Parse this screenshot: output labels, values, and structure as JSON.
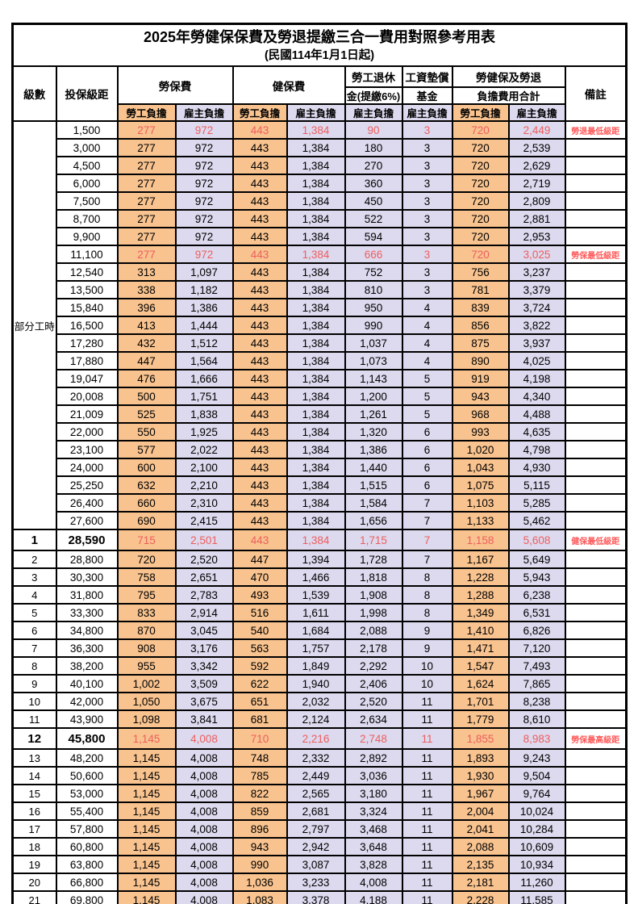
{
  "title": "2025年勞健保保費及勞退提繳三合一費用對照參考用表",
  "subtitle": "(民國114年1月1日起)",
  "columns": {
    "level": "級數",
    "bracket": "投保級距",
    "labor_insurance": "勞保費",
    "health_insurance": "健保費",
    "pension_line1": "勞工退休",
    "pension_line2": "金(提繳6%)",
    "wage_arrears_line1": "工資墊償",
    "wage_arrears_line2": "基金",
    "total_line1": "勞健保及勞退",
    "total_line2": "負擔費用合計",
    "remark": "備註",
    "employee_share": "勞工負擔",
    "employer_share": "雇主負擔"
  },
  "part_time_label": "部分工時",
  "part_time_rowspan": 23,
  "colors": {
    "employee_bg": "#F8C38F",
    "employer_bg": "#DDD9EE",
    "highlight_text": "#ED5E5E",
    "remark_text": "#FF5A5A",
    "border": "#000000"
  },
  "rows": [
    {
      "l": "",
      "b": "1,500",
      "v": [
        "277",
        "972",
        "443",
        "1,384",
        "90",
        "3",
        "720",
        "2,449"
      ],
      "r": "勞退最低級距",
      "red": true
    },
    {
      "l": "",
      "b": "3,000",
      "v": [
        "277",
        "972",
        "443",
        "1,384",
        "180",
        "3",
        "720",
        "2,539"
      ],
      "r": ""
    },
    {
      "l": "",
      "b": "4,500",
      "v": [
        "277",
        "972",
        "443",
        "1,384",
        "270",
        "3",
        "720",
        "2,629"
      ],
      "r": ""
    },
    {
      "l": "",
      "b": "6,000",
      "v": [
        "277",
        "972",
        "443",
        "1,384",
        "360",
        "3",
        "720",
        "2,719"
      ],
      "r": ""
    },
    {
      "l": "",
      "b": "7,500",
      "v": [
        "277",
        "972",
        "443",
        "1,384",
        "450",
        "3",
        "720",
        "2,809"
      ],
      "r": ""
    },
    {
      "l": "",
      "b": "8,700",
      "v": [
        "277",
        "972",
        "443",
        "1,384",
        "522",
        "3",
        "720",
        "2,881"
      ],
      "r": ""
    },
    {
      "l": "",
      "b": "9,900",
      "v": [
        "277",
        "972",
        "443",
        "1,384",
        "594",
        "3",
        "720",
        "2,953"
      ],
      "r": ""
    },
    {
      "l": "",
      "b": "11,100",
      "v": [
        "277",
        "972",
        "443",
        "1,384",
        "666",
        "3",
        "720",
        "3,025"
      ],
      "r": "勞保最低級距",
      "red": true
    },
    {
      "l": "",
      "b": "12,540",
      "v": [
        "313",
        "1,097",
        "443",
        "1,384",
        "752",
        "3",
        "756",
        "3,237"
      ],
      "r": ""
    },
    {
      "l": "",
      "b": "13,500",
      "v": [
        "338",
        "1,182",
        "443",
        "1,384",
        "810",
        "3",
        "781",
        "3,379"
      ],
      "r": ""
    },
    {
      "l": "",
      "b": "15,840",
      "v": [
        "396",
        "1,386",
        "443",
        "1,384",
        "950",
        "4",
        "839",
        "3,724"
      ],
      "r": ""
    },
    {
      "l": "",
      "b": "16,500",
      "v": [
        "413",
        "1,444",
        "443",
        "1,384",
        "990",
        "4",
        "856",
        "3,822"
      ],
      "r": ""
    },
    {
      "l": "",
      "b": "17,280",
      "v": [
        "432",
        "1,512",
        "443",
        "1,384",
        "1,037",
        "4",
        "875",
        "3,937"
      ],
      "r": ""
    },
    {
      "l": "",
      "b": "17,880",
      "v": [
        "447",
        "1,564",
        "443",
        "1,384",
        "1,073",
        "4",
        "890",
        "4,025"
      ],
      "r": ""
    },
    {
      "l": "",
      "b": "19,047",
      "v": [
        "476",
        "1,666",
        "443",
        "1,384",
        "1,143",
        "5",
        "919",
        "4,198"
      ],
      "r": ""
    },
    {
      "l": "",
      "b": "20,008",
      "v": [
        "500",
        "1,751",
        "443",
        "1,384",
        "1,200",
        "5",
        "943",
        "4,340"
      ],
      "r": ""
    },
    {
      "l": "",
      "b": "21,009",
      "v": [
        "525",
        "1,838",
        "443",
        "1,384",
        "1,261",
        "5",
        "968",
        "4,488"
      ],
      "r": ""
    },
    {
      "l": "",
      "b": "22,000",
      "v": [
        "550",
        "1,925",
        "443",
        "1,384",
        "1,320",
        "6",
        "993",
        "4,635"
      ],
      "r": ""
    },
    {
      "l": "",
      "b": "23,100",
      "v": [
        "577",
        "2,022",
        "443",
        "1,384",
        "1,386",
        "6",
        "1,020",
        "4,798"
      ],
      "r": ""
    },
    {
      "l": "",
      "b": "24,000",
      "v": [
        "600",
        "2,100",
        "443",
        "1,384",
        "1,440",
        "6",
        "1,043",
        "4,930"
      ],
      "r": ""
    },
    {
      "l": "",
      "b": "25,250",
      "v": [
        "632",
        "2,210",
        "443",
        "1,384",
        "1,515",
        "6",
        "1,075",
        "5,115"
      ],
      "r": ""
    },
    {
      "l": "",
      "b": "26,400",
      "v": [
        "660",
        "2,310",
        "443",
        "1,384",
        "1,584",
        "7",
        "1,103",
        "5,285"
      ],
      "r": ""
    },
    {
      "l": "",
      "b": "27,600",
      "v": [
        "690",
        "2,415",
        "443",
        "1,384",
        "1,656",
        "7",
        "1,133",
        "5,462"
      ],
      "r": ""
    },
    {
      "l": "1",
      "b": "28,590",
      "v": [
        "715",
        "2,501",
        "443",
        "1,384",
        "1,715",
        "7",
        "1,158",
        "5,608"
      ],
      "r": "健保最低級距",
      "red": true,
      "bold": true
    },
    {
      "l": "2",
      "b": "28,800",
      "v": [
        "720",
        "2,520",
        "447",
        "1,394",
        "1,728",
        "7",
        "1,167",
        "5,649"
      ],
      "r": ""
    },
    {
      "l": "3",
      "b": "30,300",
      "v": [
        "758",
        "2,651",
        "470",
        "1,466",
        "1,818",
        "8",
        "1,228",
        "5,943"
      ],
      "r": ""
    },
    {
      "l": "4",
      "b": "31,800",
      "v": [
        "795",
        "2,783",
        "493",
        "1,539",
        "1,908",
        "8",
        "1,288",
        "6,238"
      ],
      "r": ""
    },
    {
      "l": "5",
      "b": "33,300",
      "v": [
        "833",
        "2,914",
        "516",
        "1,611",
        "1,998",
        "8",
        "1,349",
        "6,531"
      ],
      "r": ""
    },
    {
      "l": "6",
      "b": "34,800",
      "v": [
        "870",
        "3,045",
        "540",
        "1,684",
        "2,088",
        "9",
        "1,410",
        "6,826"
      ],
      "r": ""
    },
    {
      "l": "7",
      "b": "36,300",
      "v": [
        "908",
        "3,176",
        "563",
        "1,757",
        "2,178",
        "9",
        "1,471",
        "7,120"
      ],
      "r": ""
    },
    {
      "l": "8",
      "b": "38,200",
      "v": [
        "955",
        "3,342",
        "592",
        "1,849",
        "2,292",
        "10",
        "1,547",
        "7,493"
      ],
      "r": ""
    },
    {
      "l": "9",
      "b": "40,100",
      "v": [
        "1,002",
        "3,509",
        "622",
        "1,940",
        "2,406",
        "10",
        "1,624",
        "7,865"
      ],
      "r": ""
    },
    {
      "l": "10",
      "b": "42,000",
      "v": [
        "1,050",
        "3,675",
        "651",
        "2,032",
        "2,520",
        "11",
        "1,701",
        "8,238"
      ],
      "r": ""
    },
    {
      "l": "11",
      "b": "43,900",
      "v": [
        "1,098",
        "3,841",
        "681",
        "2,124",
        "2,634",
        "11",
        "1,779",
        "8,610"
      ],
      "r": ""
    },
    {
      "l": "12",
      "b": "45,800",
      "v": [
        "1,145",
        "4,008",
        "710",
        "2,216",
        "2,748",
        "11",
        "1,855",
        "8,983"
      ],
      "r": "勞保最高級距",
      "red": true,
      "bold": true
    },
    {
      "l": "13",
      "b": "48,200",
      "v": [
        "1,145",
        "4,008",
        "748",
        "2,332",
        "2,892",
        "11",
        "1,893",
        "9,243"
      ],
      "r": ""
    },
    {
      "l": "14",
      "b": "50,600",
      "v": [
        "1,145",
        "4,008",
        "785",
        "2,449",
        "3,036",
        "11",
        "1,930",
        "9,504"
      ],
      "r": ""
    },
    {
      "l": "15",
      "b": "53,000",
      "v": [
        "1,145",
        "4,008",
        "822",
        "2,565",
        "3,180",
        "11",
        "1,967",
        "9,764"
      ],
      "r": ""
    },
    {
      "l": "16",
      "b": "55,400",
      "v": [
        "1,145",
        "4,008",
        "859",
        "2,681",
        "3,324",
        "11",
        "2,004",
        "10,024"
      ],
      "r": ""
    },
    {
      "l": "17",
      "b": "57,800",
      "v": [
        "1,145",
        "4,008",
        "896",
        "2,797",
        "3,468",
        "11",
        "2,041",
        "10,284"
      ],
      "r": ""
    },
    {
      "l": "18",
      "b": "60,800",
      "v": [
        "1,145",
        "4,008",
        "943",
        "2,942",
        "3,648",
        "11",
        "2,088",
        "10,609"
      ],
      "r": ""
    },
    {
      "l": "19",
      "b": "63,800",
      "v": [
        "1,145",
        "4,008",
        "990",
        "3,087",
        "3,828",
        "11",
        "2,135",
        "10,934"
      ],
      "r": ""
    },
    {
      "l": "20",
      "b": "66,800",
      "v": [
        "1,145",
        "4,008",
        "1,036",
        "3,233",
        "4,008",
        "11",
        "2,181",
        "11,260"
      ],
      "r": ""
    },
    {
      "l": "21",
      "b": "69,800",
      "v": [
        "1,145",
        "4,008",
        "1,083",
        "3,378",
        "4,188",
        "11",
        "2,228",
        "11,585"
      ],
      "r": ""
    }
  ]
}
